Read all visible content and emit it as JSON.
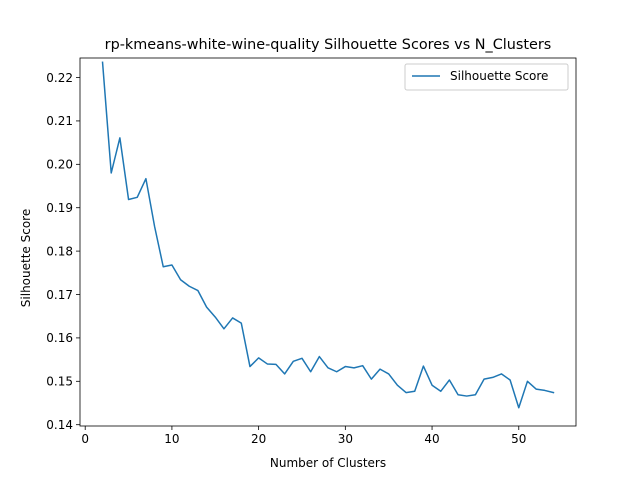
{
  "chart_data": {
    "type": "line",
    "title": "rp-kmeans-white-wine-quality Silhouette Scores vs N_Clusters",
    "xlabel": "Number of Clusters",
    "ylabel": "Silhouette Score",
    "xlim": [
      -0.6,
      56.6
    ],
    "ylim": [
      0.1397,
      0.2245
    ],
    "xticks": [
      0,
      10,
      20,
      30,
      40,
      50
    ],
    "yticks": [
      0.14,
      0.15,
      0.16,
      0.17,
      0.18,
      0.19,
      0.2,
      0.21,
      0.22
    ],
    "ytick_labels": [
      "0.14",
      "0.15",
      "0.16",
      "0.17",
      "0.18",
      "0.19",
      "0.20",
      "0.21",
      "0.22"
    ],
    "grid": false,
    "legend_position": "top-right",
    "series": [
      {
        "name": "Silhouette Score",
        "color": "#1f77b4",
        "x": [
          2,
          3,
          4,
          5,
          6,
          7,
          8,
          9,
          10,
          11,
          12,
          13,
          14,
          15,
          16,
          17,
          18,
          19,
          20,
          21,
          22,
          23,
          24,
          25,
          26,
          27,
          28,
          29,
          30,
          31,
          32,
          33,
          34,
          35,
          36,
          37,
          38,
          39,
          40,
          41,
          42,
          43,
          44,
          45,
          46,
          47,
          48,
          49,
          50,
          51,
          52,
          53,
          54
        ],
        "y": [
          0.2235,
          0.198,
          0.2061,
          0.1919,
          0.1924,
          0.1967,
          0.1857,
          0.1764,
          0.1768,
          0.1734,
          0.1719,
          0.1709,
          0.1671,
          0.1648,
          0.1621,
          0.1646,
          0.1634,
          0.1534,
          0.1554,
          0.154,
          0.1539,
          0.1517,
          0.1546,
          0.1553,
          0.1522,
          0.1557,
          0.1531,
          0.1522,
          0.1534,
          0.1531,
          0.1536,
          0.1505,
          0.1528,
          0.1517,
          0.1491,
          0.1474,
          0.1477,
          0.1535,
          0.1491,
          0.1477,
          0.1503,
          0.1469,
          0.1466,
          0.1469,
          0.1505,
          0.1509,
          0.1517,
          0.1503,
          0.1439,
          0.15,
          0.1482,
          0.1479,
          0.1474
        ]
      }
    ]
  }
}
